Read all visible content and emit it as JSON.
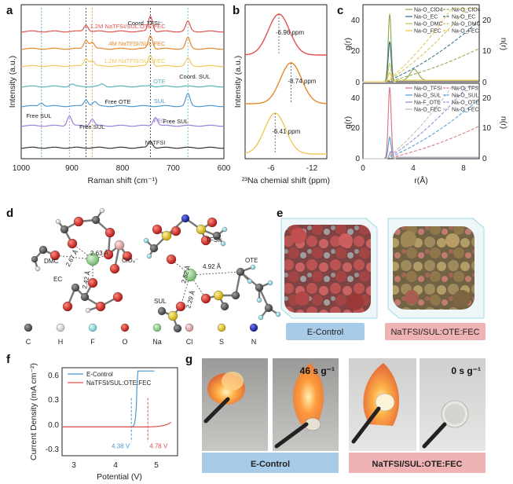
{
  "panel_labels": {
    "a": "a",
    "b": "b",
    "c": "c",
    "d": "d",
    "e": "e",
    "f": "f",
    "g": "g"
  },
  "colors": {
    "red": "#e0524f",
    "orange": "#e8872a",
    "yellow": "#f2c75c",
    "teal": "#55b4b8",
    "blue": "#4a9bd4",
    "purple": "#9c82d6",
    "black": "#333333",
    "olive": "#8aa54a",
    "pink": "#d9727a",
    "lightblue": "#a8cbe8",
    "lightpink": "#f0b3b5"
  },
  "chart_data": [
    {
      "type": "line",
      "panel": "a",
      "xlabel": "Raman shift (cm⁻¹)",
      "ylabel": "Intensity (a.u.)",
      "xlim": [
        1000,
        600
      ],
      "xticks": [
        "1000",
        "900",
        "800",
        "700",
        "600"
      ],
      "series": [
        {
          "name": "1.2M NaTFSI/SUL:OTE:FEC",
          "color": "#e0524f",
          "peaks": [
            [
              872,
              0.6
            ],
            [
              745,
              1.4
            ],
            [
              671,
              0.9
            ]
          ]
        },
        {
          "name": "4M NaTFSI/SUL:FEC",
          "color": "#e8872a",
          "peaks": [
            [
              872,
              0.8
            ],
            [
              860,
              0.6
            ],
            [
              745,
              1.2
            ],
            [
              671,
              1.0
            ]
          ]
        },
        {
          "name": "1.2M NaTFSI/SUL:FEC",
          "color": "#f2c75c",
          "peaks": [
            [
              872,
              0.7
            ],
            [
              860,
              0.5
            ],
            [
              745,
              1.0
            ],
            [
              671,
              0.7
            ]
          ]
        },
        {
          "name": "OTE",
          "color": "#55b4b8",
          "peaks": [
            [
              900,
              0.2
            ],
            [
              840,
              0.2
            ],
            [
              745,
              0.1
            ]
          ]
        },
        {
          "name": "SUL",
          "color": "#4a9bd4",
          "peaks": [
            [
              960,
              0.3
            ],
            [
              872,
              0.6
            ],
            [
              855,
              0.4
            ],
            [
              671,
              1.1
            ]
          ]
        },
        {
          "name": "FEC",
          "color": "#9c82d6",
          "peaks": [
            [
              905,
              0.9
            ],
            [
              860,
              0.6
            ],
            [
              735,
              0.8
            ]
          ]
        },
        {
          "name": "NaTFSI",
          "color": "#333333",
          "peaks": [
            [
              745,
              0.6
            ]
          ]
        }
      ],
      "annotations": [
        "Coord. TFSI⁻",
        "Coord. SUL",
        "Free OTE",
        "Free SUL",
        "Free SUL",
        "Free SUL"
      ]
    },
    {
      "type": "line",
      "panel": "b",
      "xlabel": "²³Na chemial shift (ppm)",
      "ylabel": "Intensity (a.u.)",
      "xlim": [
        -2,
        -14
      ],
      "xticks": [
        "-6",
        "-12"
      ],
      "series": [
        {
          "color": "#e0524f",
          "peak": -6.96,
          "label": "-6.96 ppm"
        },
        {
          "color": "#e8872a",
          "peak": -8.74,
          "label": "-8.74 ppm"
        },
        {
          "color": "#f2c75c",
          "peak": -6.41,
          "label": "-6.41 ppm"
        }
      ]
    },
    {
      "type": "line",
      "panel": "c",
      "xlabel": "r(Å)",
      "ylabel": "g(r)",
      "ylabel_right": "n(r)",
      "xticks": [
        "0",
        "4",
        "8"
      ],
      "top": {
        "ylim_left": [
          0,
          40
        ],
        "ylim_right": [
          0,
          20
        ],
        "left_ticks": [
          "0",
          "20",
          "40"
        ],
        "right_ticks": [
          "0",
          "10",
          "20"
        ],
        "legend": [
          "Na-O_ClO4",
          "Na-O_EC",
          "Na-O_DMC",
          "Na-O_FEC",
          "Na-O_ClO4",
          "Na-O_EC",
          "Na-O_DMC",
          "Na-O_FEC"
        ],
        "series": [
          {
            "name": "Na-O_ClO4",
            "color": "#8aa54a",
            "peak_r": 2.3,
            "peak_g": 37
          },
          {
            "name": "Na-O_EC",
            "color": "#2e6b8c",
            "peak_r": 2.3,
            "peak_g": 22
          },
          {
            "name": "Na-O_DMC",
            "color": "#c9c25a",
            "peak_r": 2.3,
            "peak_g": 10
          },
          {
            "name": "Na-O_FEC",
            "color": "#e8c24a",
            "peak_r": 2.3,
            "peak_g": 5
          }
        ]
      },
      "bottom": {
        "ylim_left": [
          0,
          40
        ],
        "ylim_right": [
          0,
          20
        ],
        "left_ticks": [
          "0",
          "20",
          "40"
        ],
        "right_ticks": [
          "0",
          "10",
          "20"
        ],
        "legend": [
          "Na-O_TFSI",
          "Na-O_SUL",
          "Na-F_OTE",
          "Na-O_FEC",
          "Na-O_TFSI",
          "Na-O_SUL",
          "Na-O_OTE",
          "Na-O_FEC"
        ],
        "series": [
          {
            "name": "Na-O_TFSI",
            "color": "#d9727a",
            "peak_r": 2.3,
            "peak_g": 40
          },
          {
            "name": "Na-O_SUL",
            "color": "#4a9bd4",
            "peak_r": 2.3,
            "peak_g": 12
          },
          {
            "name": "Na-F_OTE",
            "color": "#9c82d6",
            "peak_r": 2.4,
            "peak_g": 4
          },
          {
            "name": "Na-O_FEC",
            "color": "#bbbbbb",
            "peak_r": 2.4,
            "peak_g": 3
          }
        ]
      }
    },
    {
      "type": "line",
      "panel": "f",
      "xlabel": "Potential (V)",
      "ylabel": "Current Density (mA cm⁻²)",
      "xlim": [
        2.7,
        5.5
      ],
      "ylim": [
        -0.35,
        0.72
      ],
      "xticks": [
        "3",
        "4",
        "5"
      ],
      "yticks": [
        "-0.3",
        "0.0",
        "0.3",
        "0.6"
      ],
      "series": [
        {
          "name": "E-Control",
          "color": "#4a9bd4",
          "onset": 4.38,
          "label": "4.38 V"
        },
        {
          "name": "NaTFSI/SUL:OTE:FEC",
          "color": "#e0524f",
          "onset": 4.78,
          "label": "4.78 V"
        }
      ]
    }
  ],
  "panel_d": {
    "left_labels": [
      "DMC",
      "EC",
      "2.63 Å",
      "2.67 Å",
      "2.42 Å",
      "ClO₄⁻"
    ],
    "right_labels": [
      "TFSI⁻",
      "OTE",
      "SUL",
      "2.52 Å",
      "4.92 Å",
      "2.29 Å"
    ],
    "legend": [
      {
        "sym": "C",
        "color": "#505050"
      },
      {
        "sym": "H",
        "color": "#e8e8e8"
      },
      {
        "sym": "F",
        "color": "#9fe3e8"
      },
      {
        "sym": "O",
        "color": "#d12a2a"
      },
      {
        "sym": "Na",
        "color": "#8fcf8a"
      },
      {
        "sym": "Cl",
        "color": "#e7b2b2"
      },
      {
        "sym": "S",
        "color": "#e6c81f"
      },
      {
        "sym": "N",
        "color": "#1f2fbf"
      }
    ]
  },
  "panel_e": {
    "left_label": "E-Control",
    "right_label": "NaTFSI/SUL:OTE:FEC"
  },
  "panel_g": {
    "rate_left": "46 s g⁻¹",
    "rate_right": "0 s g⁻¹",
    "left_band": "E-Control",
    "right_band": "NaTFSI/SUL:OTE:FEC"
  }
}
